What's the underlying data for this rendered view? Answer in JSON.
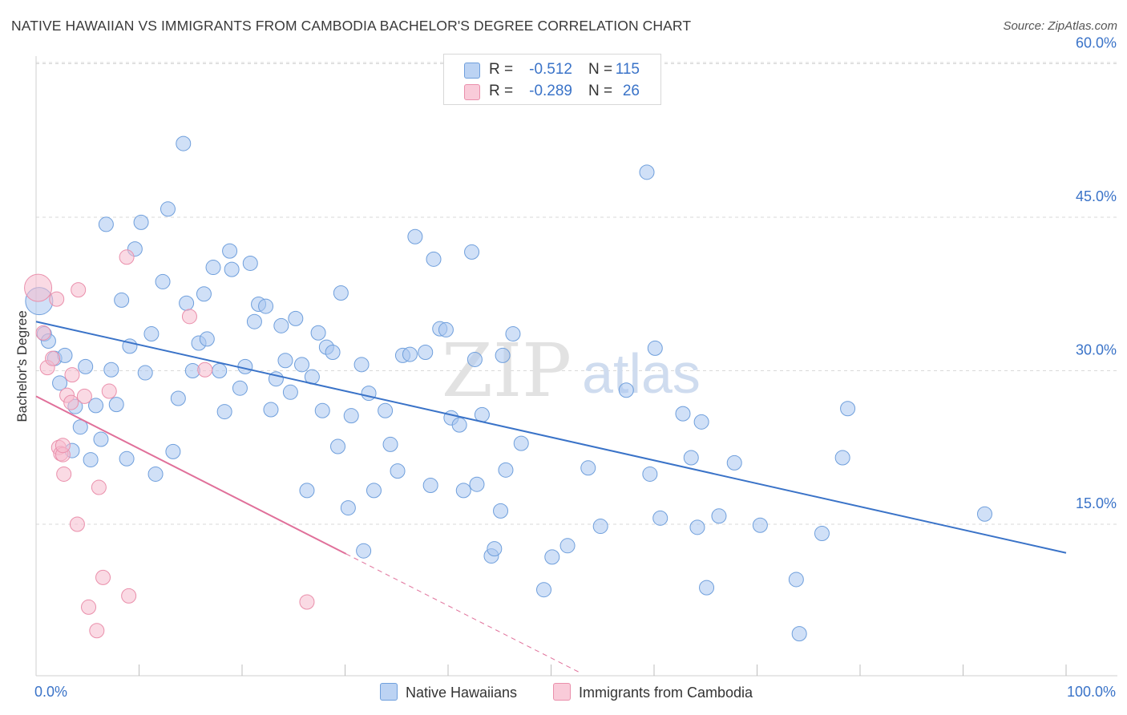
{
  "title": "NATIVE HAWAIIAN VS IMMIGRANTS FROM CAMBODIA BACHELOR'S DEGREE CORRELATION CHART",
  "source": "Source: ZipAtlas.com",
  "watermark": {
    "zip": "ZIP",
    "atlas": "atlas"
  },
  "colors": {
    "blue_fill": "#a9c6f0",
    "blue_stroke": "#6f9fdc",
    "blue_line": "#3a73c8",
    "pink_fill": "#f6bccd",
    "pink_stroke": "#ea8fab",
    "pink_line": "#e0709a",
    "grid": "#d9d9d9",
    "axis_text": "#3a73c8"
  },
  "legend": {
    "rows": [
      {
        "r_label": "R =",
        "r_value": "-0.512",
        "n_label": "N =",
        "n_value": "115",
        "swatch": "blue"
      },
      {
        "r_label": "R =",
        "r_value": "-0.289",
        "n_label": "N =",
        "n_value": "26",
        "swatch": "pink"
      }
    ]
  },
  "bottom_legend": {
    "series1": "Native Hawaiians",
    "series2": "Immigrants from Cambodia"
  },
  "chart_data": {
    "type": "scatter",
    "title": "NATIVE HAWAIIAN VS IMMIGRANTS FROM CAMBODIA BACHELOR'S DEGREE CORRELATION CHART",
    "xlabel": "",
    "ylabel": "Bachelor's Degree",
    "xlim": [
      0,
      100
    ],
    "ylim": [
      0,
      61
    ],
    "x_tick_labels": [
      {
        "value": 0,
        "label": "0.0%"
      },
      {
        "value": 100,
        "label": "100.0%"
      }
    ],
    "x_minor_ticks": [
      10,
      20,
      30,
      40,
      50,
      60,
      70,
      80,
      90,
      100
    ],
    "y_ticks": [
      {
        "value": 15,
        "label": "15.0%"
      },
      {
        "value": 30,
        "label": "30.0%"
      },
      {
        "value": 45,
        "label": "45.0%"
      },
      {
        "value": 60,
        "label": "60.0%"
      }
    ],
    "series": [
      {
        "name": "Native Hawaiians",
        "color": "blue",
        "r": -0.512,
        "n": 115,
        "trend": {
          "x0": 0,
          "y0": 34.8,
          "x1": 100,
          "y1": 12.2
        },
        "points": [
          [
            0.3,
            36.8
          ],
          [
            0.8,
            33.6
          ],
          [
            1.2,
            32.9
          ],
          [
            1.8,
            31.2
          ],
          [
            2.3,
            28.8
          ],
          [
            2.8,
            31.5
          ],
          [
            3.5,
            22.2
          ],
          [
            3.8,
            26.5
          ],
          [
            4.3,
            24.5
          ],
          [
            4.8,
            30.4
          ],
          [
            5.3,
            21.3
          ],
          [
            5.8,
            26.6
          ],
          [
            6.3,
            23.3
          ],
          [
            6.8,
            44.3
          ],
          [
            7.3,
            30.1
          ],
          [
            7.8,
            26.7
          ],
          [
            8.3,
            36.9
          ],
          [
            8.8,
            21.4
          ],
          [
            9.1,
            32.4
          ],
          [
            9.6,
            41.9
          ],
          [
            10.2,
            44.5
          ],
          [
            10.6,
            29.8
          ],
          [
            11.2,
            33.6
          ],
          [
            11.6,
            19.9
          ],
          [
            12.3,
            38.7
          ],
          [
            12.8,
            45.8
          ],
          [
            13.3,
            22.1
          ],
          [
            13.8,
            27.3
          ],
          [
            14.3,
            52.2
          ],
          [
            14.6,
            36.6
          ],
          [
            15.2,
            30.0
          ],
          [
            15.8,
            32.7
          ],
          [
            16.3,
            37.5
          ],
          [
            16.6,
            33.1
          ],
          [
            17.2,
            40.1
          ],
          [
            17.8,
            30.0
          ],
          [
            18.3,
            26.0
          ],
          [
            18.8,
            41.7
          ],
          [
            19.0,
            39.9
          ],
          [
            19.8,
            28.3
          ],
          [
            20.3,
            30.4
          ],
          [
            20.8,
            40.5
          ],
          [
            21.2,
            34.8
          ],
          [
            21.6,
            36.5
          ],
          [
            22.3,
            36.3
          ],
          [
            22.8,
            26.2
          ],
          [
            23.3,
            29.2
          ],
          [
            23.8,
            34.4
          ],
          [
            24.2,
            31.0
          ],
          [
            24.7,
            27.9
          ],
          [
            25.2,
            35.1
          ],
          [
            25.8,
            30.6
          ],
          [
            26.3,
            18.3
          ],
          [
            26.8,
            29.4
          ],
          [
            27.4,
            33.7
          ],
          [
            27.8,
            26.1
          ],
          [
            28.2,
            32.3
          ],
          [
            28.8,
            31.8
          ],
          [
            29.3,
            22.6
          ],
          [
            29.6,
            37.6
          ],
          [
            30.3,
            16.6
          ],
          [
            30.6,
            25.6
          ],
          [
            31.6,
            30.6
          ],
          [
            31.8,
            12.4
          ],
          [
            32.3,
            27.8
          ],
          [
            32.8,
            18.3
          ],
          [
            33.9,
            26.1
          ],
          [
            34.4,
            22.8
          ],
          [
            35.1,
            20.2
          ],
          [
            35.6,
            31.5
          ],
          [
            36.3,
            31.6
          ],
          [
            36.8,
            43.1
          ],
          [
            37.8,
            31.8
          ],
          [
            38.3,
            18.8
          ],
          [
            38.6,
            40.9
          ],
          [
            39.2,
            34.1
          ],
          [
            39.8,
            34.0
          ],
          [
            40.3,
            25.4
          ],
          [
            41.1,
            24.7
          ],
          [
            41.5,
            18.3
          ],
          [
            42.3,
            41.6
          ],
          [
            42.6,
            31.1
          ],
          [
            42.8,
            18.9
          ],
          [
            43.3,
            25.7
          ],
          [
            44.2,
            11.9
          ],
          [
            44.5,
            12.6
          ],
          [
            45.1,
            16.3
          ],
          [
            45.3,
            31.5
          ],
          [
            45.6,
            20.3
          ],
          [
            46.3,
            33.6
          ],
          [
            47.1,
            22.9
          ],
          [
            49.3,
            8.6
          ],
          [
            50.1,
            11.8
          ],
          [
            51.6,
            12.9
          ],
          [
            53.6,
            20.5
          ],
          [
            54.8,
            14.8
          ],
          [
            57.3,
            28.1
          ],
          [
            59.3,
            49.4
          ],
          [
            59.6,
            19.9
          ],
          [
            60.1,
            32.2
          ],
          [
            60.6,
            15.6
          ],
          [
            62.8,
            25.8
          ],
          [
            63.6,
            21.5
          ],
          [
            64.2,
            14.7
          ],
          [
            64.6,
            25.0
          ],
          [
            65.1,
            8.8
          ],
          [
            66.3,
            15.8
          ],
          [
            67.8,
            21.0
          ],
          [
            70.3,
            14.9
          ],
          [
            73.8,
            9.6
          ],
          [
            74.1,
            4.3
          ],
          [
            76.3,
            14.1
          ],
          [
            78.3,
            21.5
          ],
          [
            78.8,
            26.3
          ],
          [
            92.1,
            16.0
          ]
        ]
      },
      {
        "name": "Immigrants from Cambodia",
        "color": "pink",
        "r": -0.289,
        "n": 26,
        "trend": {
          "x0": 0,
          "y0": 27.5,
          "x1": 30.1,
          "y1": 12.1
        },
        "trend_dashed": {
          "x0": 30.1,
          "y0": 12.1,
          "x1": 53.0,
          "y1": 0.4
        },
        "points": [
          [
            0.2,
            38.1
          ],
          [
            0.7,
            33.7
          ],
          [
            1.1,
            30.3
          ],
          [
            1.6,
            31.2
          ],
          [
            2.0,
            37.0
          ],
          [
            2.2,
            22.5
          ],
          [
            2.4,
            21.9
          ],
          [
            2.6,
            21.8
          ],
          [
            2.7,
            19.9
          ],
          [
            3.0,
            27.6
          ],
          [
            3.4,
            26.9
          ],
          [
            3.5,
            29.6
          ],
          [
            4.0,
            15.0
          ],
          [
            4.1,
            37.9
          ],
          [
            4.7,
            27.5
          ],
          [
            5.1,
            6.9
          ],
          [
            5.9,
            4.6
          ],
          [
            6.1,
            18.6
          ],
          [
            6.5,
            9.8
          ],
          [
            7.1,
            28.0
          ],
          [
            8.8,
            41.1
          ],
          [
            9.0,
            8.0
          ],
          [
            14.9,
            35.3
          ],
          [
            16.4,
            30.1
          ],
          [
            26.3,
            7.4
          ],
          [
            2.6,
            22.7
          ]
        ]
      }
    ]
  }
}
